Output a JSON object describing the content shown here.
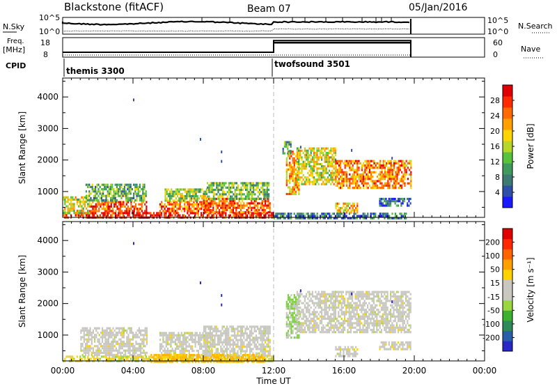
{
  "header": {
    "station": "Blackstone (fitACF)",
    "beam": "Beam 07",
    "date": "05/Jan/2016"
  },
  "noise_panel": {
    "left_label": "N.Sky",
    "right_label": "N.Search",
    "left_ticks": [
      "10^5",
      "10^0"
    ],
    "right_ticks": [
      "10^5",
      "10^0"
    ]
  },
  "freq_panel": {
    "left_label_line1": "Freq.",
    "left_label_line2": "[MHz]",
    "right_label": "Nave",
    "left_ticks": [
      "18",
      "8"
    ],
    "right_ticks": [
      "60",
      "0"
    ],
    "freq_levels_mhz": {
      "themis": 10.5,
      "twofsound": 16.5
    }
  },
  "cpid": {
    "label": "CPID",
    "modes": [
      {
        "name": "themis 3300",
        "start_hour": 0
      },
      {
        "name": "twofsound 3501",
        "start_hour": 12
      }
    ]
  },
  "chart_data": [
    {
      "type": "heatmap",
      "panel": "power",
      "ylabel": "Slant Range [km]",
      "xlabel": "Time UT",
      "x_tick_labels": [
        "00:00",
        "04:00",
        "08:00",
        "12:00",
        "16:00",
        "20:00",
        "00:00"
      ],
      "x_ticks_hours": [
        0,
        4,
        8,
        12,
        16,
        20,
        24
      ],
      "xlim_hours": [
        0,
        24
      ],
      "ylim_km": [
        180,
        4600
      ],
      "y_ticks": [
        1000,
        2000,
        3000,
        4000
      ],
      "colorbar_label": "Power [dB]",
      "colorbar_ticks": [
        "4",
        "8",
        "12",
        "16",
        "20",
        "24",
        "28"
      ],
      "colorbar_colors": [
        "#1a1aff",
        "#2f4fa8",
        "#3c7a72",
        "#3f9a5b",
        "#58c23c",
        "#b8d62a",
        "#ffd400",
        "#ffa000",
        "#ff6a00",
        "#ff2a00",
        "#e00000"
      ],
      "data_end_hour": 19.8,
      "mode_change_hour": 12,
      "regions": [
        {
          "t0": 0.0,
          "t1": 12.0,
          "r0": 180,
          "r1": 350,
          "level": 0.95
        },
        {
          "t0": 0.0,
          "t1": 1.5,
          "r0": 350,
          "r1": 850,
          "level": 0.55
        },
        {
          "t0": 1.5,
          "t1": 4.8,
          "r0": 350,
          "r1": 700,
          "level": 0.85
        },
        {
          "t0": 1.3,
          "t1": 4.7,
          "r0": 700,
          "r1": 1250,
          "level": 0.35
        },
        {
          "t0": 5.5,
          "t1": 8.5,
          "r0": 350,
          "r1": 700,
          "level": 0.8
        },
        {
          "t0": 5.8,
          "t1": 8.2,
          "r0": 700,
          "r1": 1100,
          "level": 0.45
        },
        {
          "t0": 8.0,
          "t1": 11.8,
          "r0": 350,
          "r1": 800,
          "level": 0.85
        },
        {
          "t0": 8.2,
          "t1": 11.7,
          "r0": 800,
          "r1": 1300,
          "level": 0.4
        },
        {
          "t0": 12.7,
          "t1": 13.4,
          "r0": 900,
          "r1": 2300,
          "level": 0.7
        },
        {
          "t0": 12.5,
          "t1": 13.0,
          "r0": 2200,
          "r1": 2600,
          "level": 0.3
        },
        {
          "t0": 13.3,
          "t1": 15.5,
          "r0": 1200,
          "r1": 2400,
          "level": 0.55
        },
        {
          "t0": 15.5,
          "t1": 19.8,
          "r0": 1100,
          "r1": 2000,
          "level": 0.75
        },
        {
          "t0": 15.5,
          "t1": 16.8,
          "r0": 300,
          "r1": 650,
          "level": 0.65
        },
        {
          "t0": 18.0,
          "t1": 19.8,
          "r0": 550,
          "r1": 800,
          "level": 0.2
        },
        {
          "t0": 12.0,
          "t1": 19.5,
          "r0": 180,
          "r1": 330,
          "level": 0.2
        }
      ]
    },
    {
      "type": "heatmap",
      "panel": "velocity",
      "ylabel": "Slant Range [km]",
      "xlabel": "Time UT",
      "x_tick_labels": [
        "00:00",
        "04:00",
        "08:00",
        "12:00",
        "16:00",
        "20:00",
        "00:00"
      ],
      "x_ticks_hours": [
        0,
        4,
        8,
        12,
        16,
        20,
        24
      ],
      "xlim_hours": [
        0,
        24
      ],
      "ylim_km": [
        180,
        4600
      ],
      "y_ticks": [
        1000,
        2000,
        3000,
        4000
      ],
      "colorbar_label": "Velocity [m s⁻¹]",
      "colorbar_ticks": [
        "200",
        "100",
        "50",
        "15",
        "-15",
        "-50",
        "-100",
        "-200"
      ],
      "colorbar_colors": [
        "#2828c8",
        "#2b5ea8",
        "#2e8a5a",
        "#3cb030",
        "#9ad640",
        "#c8c8c0",
        "#c8c8c0",
        "#ffd200",
        "#ffa000",
        "#ff6400",
        "#ff2800",
        "#e00000"
      ],
      "data_end_hour": 19.8,
      "mode_change_hour": 12,
      "regions": [
        {
          "t0": 0.0,
          "t1": 12.0,
          "r0": 180,
          "r1": 350,
          "vel": "low-neg"
        },
        {
          "t0": 1.0,
          "t1": 4.8,
          "r0": 350,
          "r1": 1250,
          "vel": "zero"
        },
        {
          "t0": 5.5,
          "t1": 8.5,
          "r0": 350,
          "r1": 1100,
          "vel": "zero"
        },
        {
          "t0": 8.0,
          "t1": 11.8,
          "r0": 350,
          "r1": 1300,
          "vel": "zero"
        },
        {
          "t0": 5.0,
          "t1": 11.5,
          "r0": 180,
          "r1": 400,
          "vel": "neg"
        },
        {
          "t0": 12.7,
          "t1": 13.4,
          "r0": 900,
          "r1": 2300,
          "vel": "pos"
        },
        {
          "t0": 13.3,
          "t1": 19.8,
          "r0": 1100,
          "r1": 2400,
          "vel": "zero"
        },
        {
          "t0": 15.5,
          "t1": 16.8,
          "r0": 300,
          "r1": 650,
          "vel": "zero"
        },
        {
          "t0": 18.0,
          "t1": 19.8,
          "r0": 550,
          "r1": 800,
          "vel": "zero"
        }
      ]
    }
  ]
}
